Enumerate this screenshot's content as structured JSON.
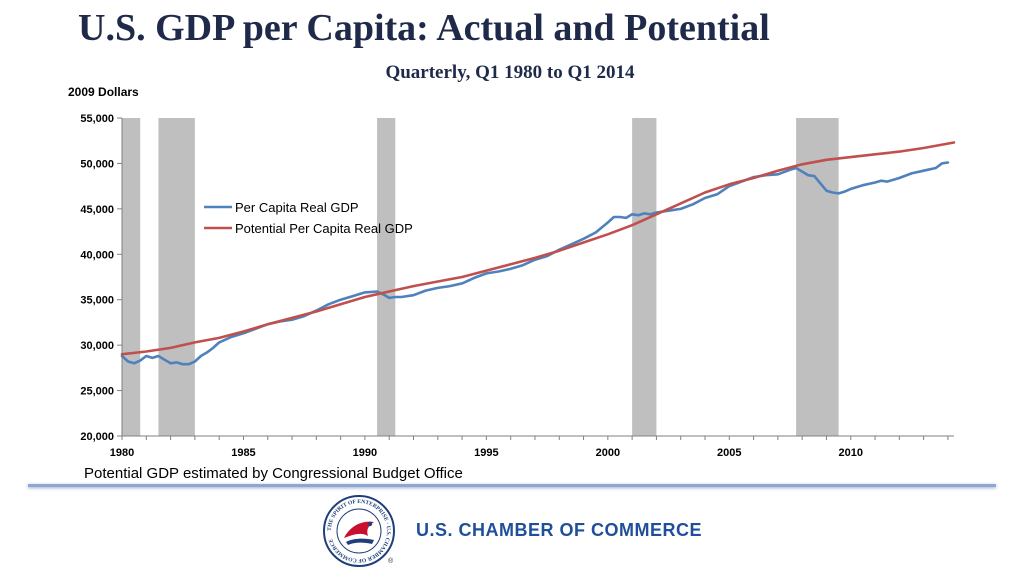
{
  "header": {
    "title": "U.S. GDP per Capita: Actual and Potential",
    "subtitle": "Quarterly, Q1 1980 to Q1 2014"
  },
  "footer": {
    "note": "Potential GDP estimated by Congressional Budget Office",
    "organization": "U.S. CHAMBER OF COMMERCE",
    "seal_text": "THE SPIRIT OF ENTERPRISE · U.S. CHAMBER OF COMMERCE",
    "registered": "®"
  },
  "colors": {
    "actual": "#4f81bd",
    "potential": "#c0504d",
    "recession": "#bfbfbf",
    "title": "#1f2a4a",
    "brand": "#1f4f9a"
  },
  "chart_data": {
    "type": "line",
    "title": "U.S. GDP per Capita: Actual and Potential",
    "subtitle": "Quarterly, Q1 1980 to Q1 2014",
    "ylabel": "2009 Dollars",
    "xlabel": "",
    "ylim": [
      20000,
      55000
    ],
    "xlim": [
      1980,
      2014.25
    ],
    "yticks": [
      20000,
      25000,
      30000,
      35000,
      40000,
      45000,
      50000,
      55000
    ],
    "ytick_labels": [
      "20,000",
      "25,000",
      "30,000",
      "35,000",
      "40,000",
      "45,000",
      "50,000",
      "55,000"
    ],
    "xticks": [
      1980,
      1985,
      1990,
      1995,
      2000,
      2005,
      2010
    ],
    "xtick_labels": [
      "1980",
      "1985",
      "1990",
      "1995",
      "2000",
      "2005",
      "2010"
    ],
    "grid": false,
    "legend_position": "upper-left",
    "recessions": [
      [
        1980.0,
        1980.75
      ],
      [
        1981.5,
        1983.0
      ],
      [
        1990.5,
        1991.25
      ],
      [
        2001.0,
        2002.0
      ],
      [
        2007.75,
        2009.5
      ]
    ],
    "series": [
      {
        "name": "Per Capita Real GDP",
        "color": "#4f81bd",
        "x": [
          1980,
          1980.25,
          1980.5,
          1980.75,
          1981,
          1981.25,
          1981.5,
          1981.75,
          1982,
          1982.25,
          1982.5,
          1982.75,
          1983,
          1983.25,
          1983.5,
          1983.75,
          1984,
          1984.5,
          1985,
          1985.5,
          1986,
          1986.5,
          1987,
          1987.5,
          1988,
          1988.5,
          1989,
          1989.5,
          1990,
          1990.5,
          1990.75,
          1991,
          1991.25,
          1991.5,
          1992,
          1992.5,
          1993,
          1993.5,
          1994,
          1994.5,
          1995,
          1995.5,
          1996,
          1996.5,
          1997,
          1997.5,
          1998,
          1998.5,
          1999,
          1999.5,
          2000,
          2000.25,
          2000.5,
          2000.75,
          2001,
          2001.25,
          2001.5,
          2001.75,
          2002,
          2002.5,
          2003,
          2003.5,
          2004,
          2004.5,
          2005,
          2005.5,
          2006,
          2006.5,
          2007,
          2007.5,
          2007.75,
          2008,
          2008.25,
          2008.5,
          2008.75,
          2009,
          2009.25,
          2009.5,
          2009.75,
          2010,
          2010.5,
          2011,
          2011.25,
          2011.5,
          2012,
          2012.5,
          2013,
          2013.5,
          2013.75,
          2014
        ],
        "values": [
          28800,
          28200,
          28000,
          28300,
          28800,
          28600,
          28800,
          28400,
          28000,
          28100,
          27900,
          27900,
          28200,
          28800,
          29200,
          29700,
          30300,
          30900,
          31300,
          31800,
          32300,
          32600,
          32800,
          33200,
          33800,
          34500,
          35000,
          35400,
          35800,
          35900,
          35600,
          35200,
          35300,
          35300,
          35500,
          36000,
          36300,
          36500,
          36800,
          37400,
          37900,
          38100,
          38400,
          38800,
          39400,
          39800,
          40500,
          41100,
          41700,
          42400,
          43500,
          44100,
          44100,
          44000,
          44400,
          44300,
          44500,
          44400,
          44600,
          44800,
          45000,
          45500,
          46200,
          46600,
          47500,
          48000,
          48500,
          48700,
          48800,
          49300,
          49500,
          49100,
          48700,
          48600,
          47800,
          47000,
          46800,
          46700,
          46900,
          47200,
          47600,
          47900,
          48100,
          48000,
          48400,
          48900,
          49200,
          49500,
          50000,
          50100
        ]
      },
      {
        "name": "Potential Per Capita Real GDP",
        "color": "#c0504d",
        "x": [
          1980,
          1981,
          1982,
          1983,
          1984,
          1985,
          1986,
          1987,
          1988,
          1989,
          1990,
          1991,
          1992,
          1993,
          1994,
          1995,
          1996,
          1997,
          1998,
          1999,
          2000,
          2001,
          2002,
          2003,
          2004,
          2005,
          2006,
          2007,
          2008,
          2009,
          2010,
          2011,
          2012,
          2013,
          2014.25
        ],
        "values": [
          29000,
          29300,
          29700,
          30300,
          30800,
          31500,
          32300,
          33000,
          33700,
          34500,
          35300,
          35900,
          36500,
          37000,
          37500,
          38200,
          38900,
          39600,
          40400,
          41300,
          42200,
          43200,
          44400,
          45600,
          46800,
          47700,
          48400,
          49200,
          49900,
          50400,
          50700,
          51000,
          51300,
          51700,
          52300
        ]
      }
    ]
  }
}
